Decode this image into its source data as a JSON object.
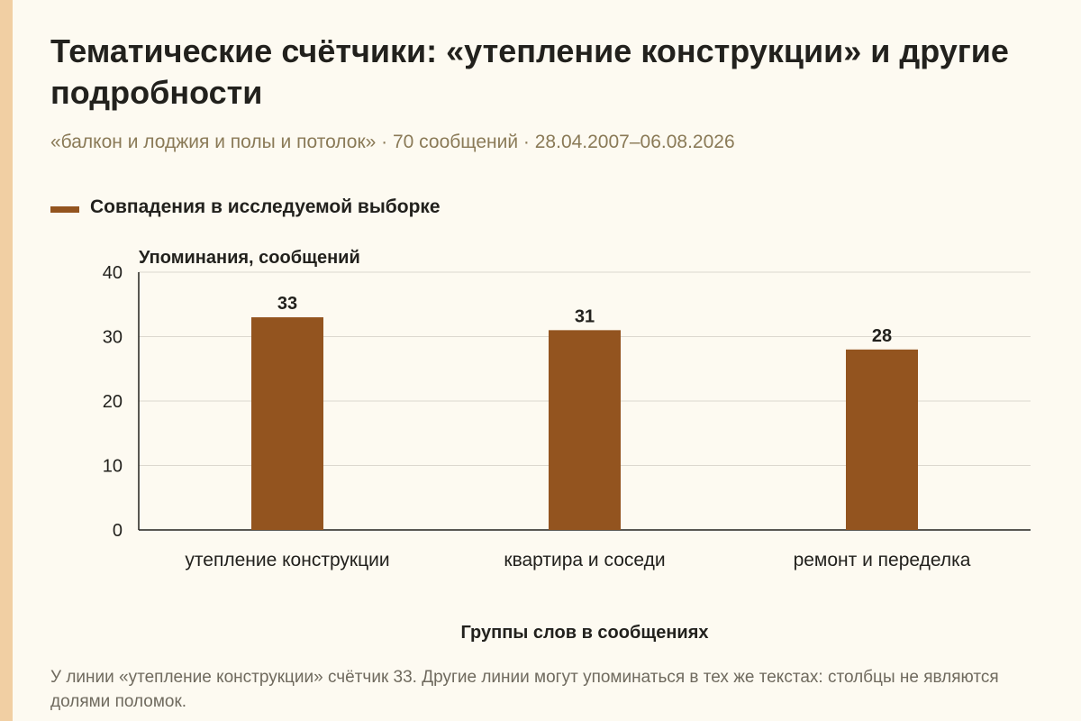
{
  "title": "Тематические счётчики: «утепление конструкции» и другие подробности",
  "subtitle": "«балкон и лоджия и полы и потолок» · 70 сообщений · 28.04.2007–06.08.2026",
  "footnote": "У линии «утепление конструкции» счётчик 33. Другие линии могут упоминаться в тех же текстах: столбцы не являются долями поломок.",
  "colors": {
    "bar": "#93541f",
    "grid": "#dcd8cf",
    "accent_stripe": "#f1cfa3"
  },
  "chart_data": {
    "type": "bar",
    "categories": [
      "утепление конструкции",
      "квартира и соседи",
      "ремонт и переделка"
    ],
    "series": [
      {
        "name": "Совпадения в исследуемой выборке",
        "values": [
          33,
          31,
          28
        ]
      }
    ],
    "ylabel": "Упоминания, сообщений",
    "xlabel": "Группы слов в сообщениях",
    "ylim": [
      0,
      40
    ],
    "yticks": [
      0,
      10,
      20,
      30,
      40
    ],
    "grid": true,
    "legend_position": "top-left"
  }
}
